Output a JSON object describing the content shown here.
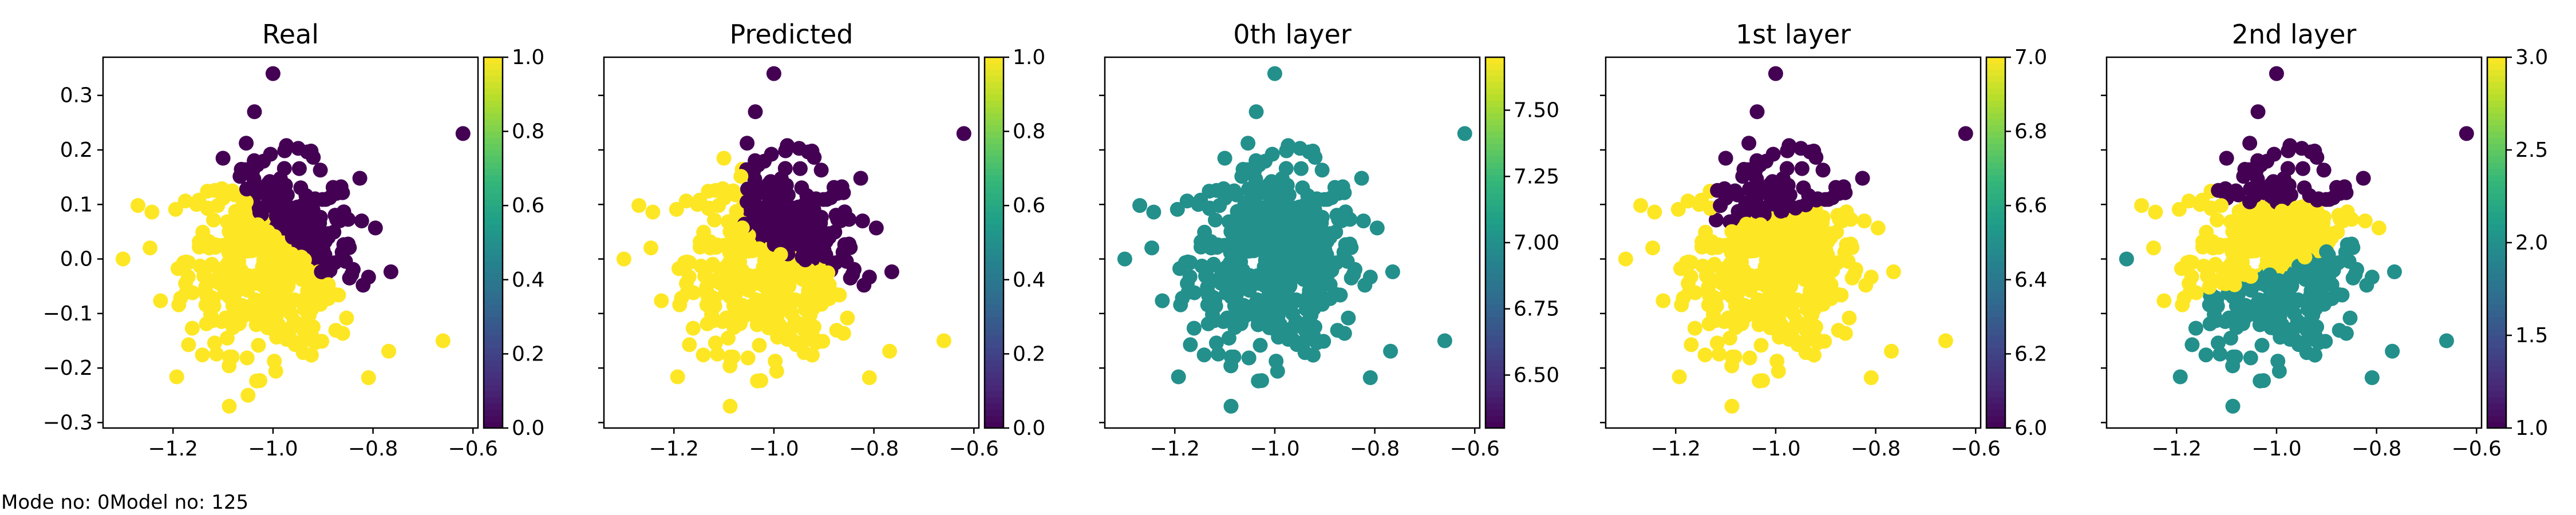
{
  "footer_text": "Mode no: 0Model no: 125",
  "chart_data": [
    {
      "type": "scatter",
      "title": "Real",
      "xlim": [
        -1.34,
        -0.59
      ],
      "ylim": [
        -0.31,
        0.37
      ],
      "xticks": [
        -1.2,
        -1.0,
        -0.8,
        -0.6
      ],
      "xtick_labels": [
        "−1.2",
        "−1.0",
        "−0.8",
        "−0.6"
      ],
      "yticks": [
        -0.3,
        -0.2,
        -0.1,
        0.0,
        0.1,
        0.2,
        0.3
      ],
      "ytick_labels": [
        "−0.3",
        "−0.2",
        "−0.1",
        "0.0",
        "0.1",
        "0.2",
        "0.3"
      ],
      "colorbar": {
        "range": [
          0.0,
          1.0
        ],
        "ticks": [
          0.0,
          0.2,
          0.4,
          0.6,
          0.8,
          1.0
        ],
        "tick_labels": [
          "0.0",
          "0.2",
          "0.4",
          "0.6",
          "0.8",
          "1.0"
        ],
        "colormap": "viridis"
      },
      "color_rule": "real",
      "outliers": [
        {
          "x": -1.0,
          "y": 0.34,
          "c": 0.0
        },
        {
          "x": -0.62,
          "y": 0.23,
          "c": 0.0
        },
        {
          "x": -1.3,
          "y": 0.0,
          "c": 1.0
        },
        {
          "x": -0.66,
          "y": -0.15,
          "c": 1.0
        },
        {
          "x": -1.05,
          "y": -0.25,
          "c": 1.0
        }
      ]
    },
    {
      "type": "scatter",
      "title": "Predicted",
      "xlim": [
        -1.34,
        -0.59
      ],
      "ylim": [
        -0.31,
        0.37
      ],
      "xticks": [
        -1.2,
        -1.0,
        -0.8,
        -0.6
      ],
      "xtick_labels": [
        "−1.2",
        "−1.0",
        "−0.8",
        "−0.6"
      ],
      "yticks": [
        -0.3,
        -0.2,
        -0.1,
        0.0,
        0.1,
        0.2,
        0.3
      ],
      "ytick_labels": [],
      "colorbar": {
        "range": [
          0.0,
          1.0
        ],
        "ticks": [
          0.0,
          0.2,
          0.4,
          0.6,
          0.8,
          1.0
        ],
        "tick_labels": [
          "0.0",
          "0.2",
          "0.4",
          "0.6",
          "0.8",
          "1.0"
        ],
        "colormap": "viridis"
      },
      "color_rule": "predicted",
      "outliers": [
        {
          "x": -1.0,
          "y": 0.34,
          "c": 0.0
        },
        {
          "x": -0.62,
          "y": 0.23,
          "c": 0.0
        },
        {
          "x": -1.3,
          "y": 0.0,
          "c": 1.0
        },
        {
          "x": -0.66,
          "y": -0.15,
          "c": 1.0
        }
      ]
    },
    {
      "type": "scatter",
      "title": "0th layer",
      "xlim": [
        -1.34,
        -0.59
      ],
      "ylim": [
        -0.31,
        0.37
      ],
      "xticks": [
        -1.2,
        -1.0,
        -0.8,
        -0.6
      ],
      "xtick_labels": [
        "−1.2",
        "−1.0",
        "−0.8",
        "−0.6"
      ],
      "yticks": [
        -0.3,
        -0.2,
        -0.1,
        0.0,
        0.1,
        0.2,
        0.3
      ],
      "ytick_labels": [],
      "colorbar": {
        "range": [
          6.3,
          7.7
        ],
        "ticks": [
          6.5,
          6.75,
          7.0,
          7.25,
          7.5
        ],
        "tick_labels": [
          "6.50",
          "6.75",
          "7.00",
          "7.25",
          "7.50"
        ],
        "colormap": "viridis"
      },
      "color_rule": "constant",
      "constant_value": 7.0,
      "outliers": [
        {
          "x": -1.0,
          "y": 0.34,
          "c": 7.0
        },
        {
          "x": -0.62,
          "y": 0.23,
          "c": 7.0
        },
        {
          "x": -1.3,
          "y": 0.0,
          "c": 7.0
        },
        {
          "x": -0.66,
          "y": -0.15,
          "c": 7.0
        }
      ]
    },
    {
      "type": "scatter",
      "title": "1st layer",
      "xlim": [
        -1.34,
        -0.59
      ],
      "ylim": [
        -0.31,
        0.37
      ],
      "xticks": [
        -1.2,
        -1.0,
        -0.8,
        -0.6
      ],
      "xtick_labels": [
        "−1.2",
        "−1.0",
        "−0.8",
        "−0.6"
      ],
      "yticks": [
        -0.3,
        -0.2,
        -0.1,
        0.0,
        0.1,
        0.2,
        0.3
      ],
      "ytick_labels": [],
      "colorbar": {
        "range": [
          6.0,
          7.0
        ],
        "ticks": [
          6.0,
          6.2,
          6.4,
          6.6,
          6.8,
          7.0
        ],
        "tick_labels": [
          "6.0",
          "6.2",
          "6.4",
          "6.6",
          "6.8",
          "7.0"
        ],
        "colormap": "viridis"
      },
      "color_rule": "layer1",
      "outliers": [
        {
          "x": -1.0,
          "y": 0.34,
          "c": 6.0
        },
        {
          "x": -0.62,
          "y": 0.23,
          "c": 6.0
        },
        {
          "x": -1.3,
          "y": 0.0,
          "c": 7.0
        },
        {
          "x": -0.66,
          "y": -0.15,
          "c": 7.0
        }
      ]
    },
    {
      "type": "scatter",
      "title": "2nd layer",
      "xlim": [
        -1.34,
        -0.59
      ],
      "ylim": [
        -0.31,
        0.37
      ],
      "xticks": [
        -1.2,
        -1.0,
        -0.8,
        -0.6
      ],
      "xtick_labels": [
        "−1.2",
        "−1.0",
        "−0.8",
        "−0.6"
      ],
      "yticks": [
        -0.3,
        -0.2,
        -0.1,
        0.0,
        0.1,
        0.2,
        0.3
      ],
      "ytick_labels": [],
      "colorbar": {
        "range": [
          1.0,
          3.0
        ],
        "ticks": [
          1.0,
          1.5,
          2.0,
          2.5,
          3.0
        ],
        "tick_labels": [
          "1.0",
          "1.5",
          "2.0",
          "2.5",
          "3.0"
        ],
        "colormap": "viridis"
      },
      "color_rule": "layer2",
      "outliers": [
        {
          "x": -1.0,
          "y": 0.34,
          "c": 1.0
        },
        {
          "x": -0.62,
          "y": 0.23,
          "c": 1.0
        },
        {
          "x": -1.3,
          "y": 0.0,
          "c": 2.0
        },
        {
          "x": -0.66,
          "y": -0.15,
          "c": 2.0
        }
      ]
    }
  ]
}
